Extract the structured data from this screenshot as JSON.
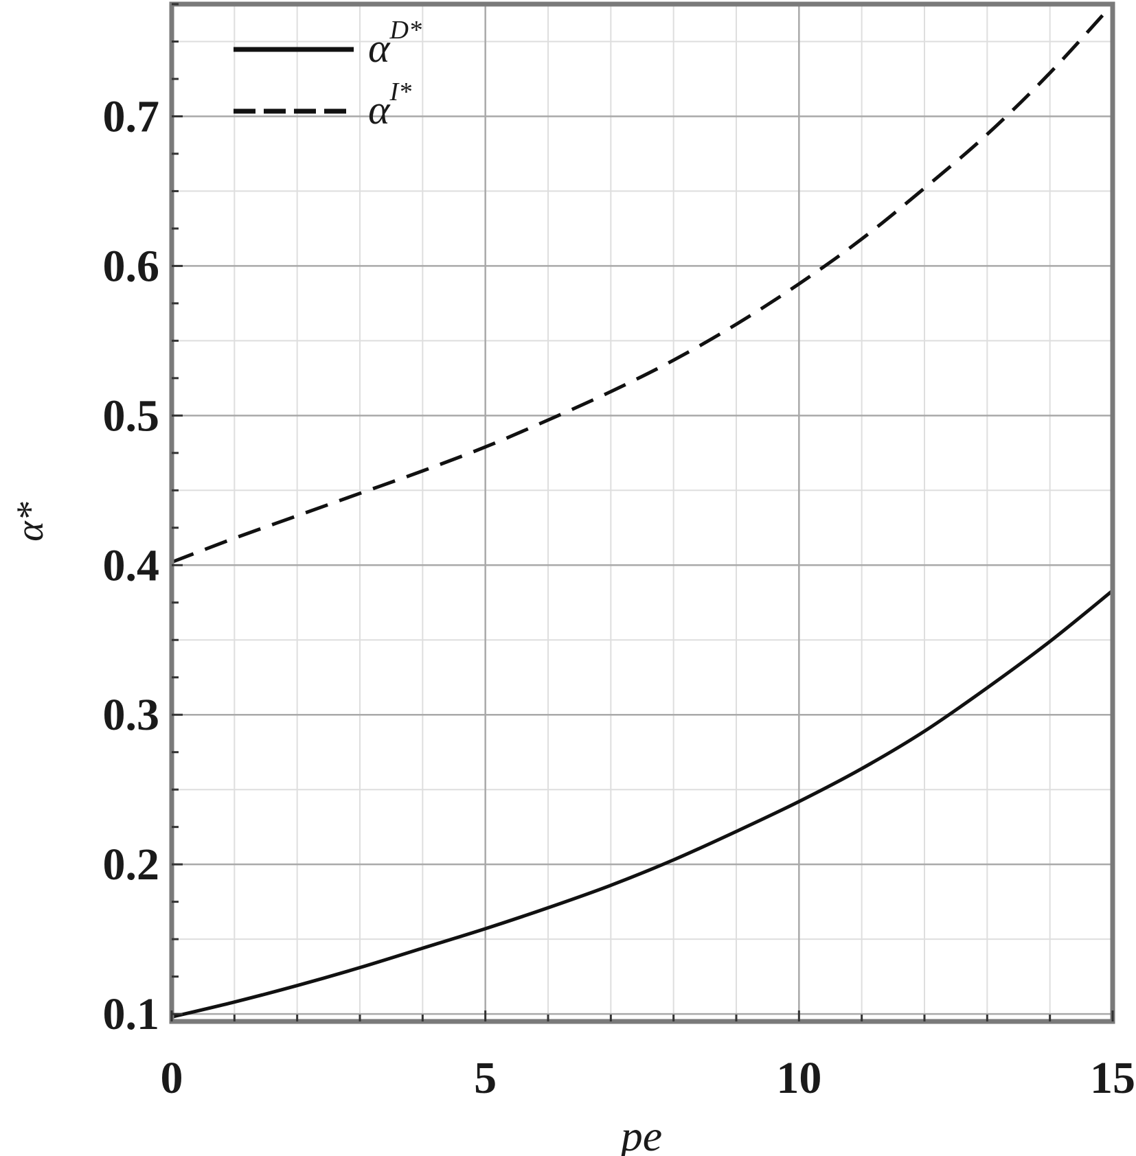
{
  "chart_data": {
    "type": "line",
    "title": "",
    "xlabel": "pe",
    "ylabel": "α*",
    "xlim": [
      0,
      15
    ],
    "ylim": [
      0.095,
      0.775
    ],
    "x_ticks": [
      0,
      5,
      10,
      15
    ],
    "x_tick_labels": [
      "0",
      "5",
      "10",
      "15"
    ],
    "y_ticks": [
      0.1,
      0.2,
      0.3,
      0.4,
      0.5,
      0.6,
      0.7
    ],
    "y_tick_labels": [
      "0.1",
      "0.2",
      "0.3",
      "0.4",
      "0.5",
      "0.6",
      "0.7"
    ],
    "grid": true,
    "legend_position": "top-left",
    "series": [
      {
        "name": "α^{D*}",
        "name_base": "α",
        "name_sup": "D*",
        "style": "solid",
        "color": "#111111",
        "x": [
          0,
          1,
          2,
          3,
          4,
          5,
          6,
          7,
          8,
          9,
          10,
          11,
          12,
          13,
          14,
          15
        ],
        "y": [
          0.098,
          0.108,
          0.119,
          0.131,
          0.144,
          0.157,
          0.171,
          0.186,
          0.203,
          0.222,
          0.242,
          0.264,
          0.289,
          0.318,
          0.349,
          0.383
        ]
      },
      {
        "name": "α^{I*}",
        "name_base": "α",
        "name_sup": "I*",
        "style": "dashed",
        "color": "#111111",
        "x": [
          0,
          1,
          2,
          3,
          4,
          5,
          6,
          7,
          8,
          9,
          10,
          11,
          12,
          13,
          14,
          15
        ],
        "y": [
          0.402,
          0.418,
          0.433,
          0.448,
          0.463,
          0.479,
          0.497,
          0.516,
          0.537,
          0.561,
          0.588,
          0.618,
          0.652,
          0.688,
          0.729,
          0.775
        ]
      }
    ]
  }
}
